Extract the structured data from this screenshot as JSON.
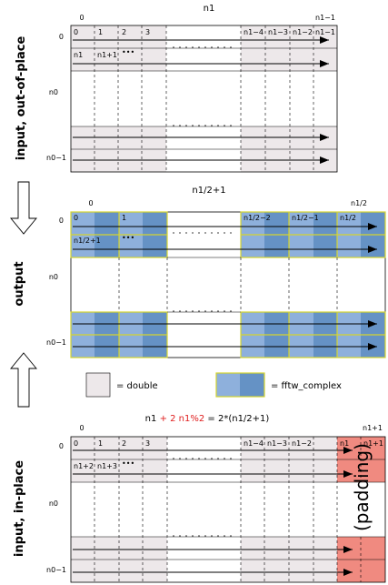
{
  "colors": {
    "double_fill": "#ede8ea",
    "complex_light": "#8eb0dc",
    "complex_dark": "#6592c5",
    "complex_border": "#d4d430",
    "padding_fill": "#f08a80",
    "grid_line": "#000000",
    "formula_accent": "#e02020"
  },
  "sections": {
    "input_oop": {
      "side_label": "input, out-of-place",
      "title": "n1",
      "col_start": "0",
      "col_end": "n1−1",
      "row_labels": {
        "first": "0",
        "middle": "n0",
        "last": "n0−1"
      },
      "row0_cells": [
        "0",
        "1",
        "2",
        "3",
        "n1−4",
        "n1−3",
        "n1−2",
        "n1−1"
      ],
      "row1_cells": [
        "n1",
        "n1+1",
        "•••"
      ]
    },
    "output": {
      "side_label": "output",
      "title": "n1/2+1",
      "col_start": "0",
      "col_end": "n1/2",
      "row_labels": {
        "first": "0",
        "middle": "n0",
        "last": "n0−1"
      },
      "row0_cells": [
        "0",
        "1",
        "n1/2−2",
        "n1/2−1",
        "n1/2"
      ],
      "row1_cells": [
        "n1/2+1",
        "•••"
      ]
    },
    "input_ip": {
      "side_label": "input, in-place",
      "title_prefix": "n1 ",
      "title_red": "+ 2  n1%2",
      "title_suffix": " = 2*(n1/2+1)",
      "col_start": "0",
      "col_end": "n1+1",
      "row_labels": {
        "first": "0",
        "middle": "n0",
        "last": "n0−1"
      },
      "row0_cells": [
        "0",
        "1",
        "2",
        "3",
        "n1−4",
        "n1−3",
        "n1−2",
        "n1",
        "n1+1"
      ],
      "row1_cells": [
        "n1+2",
        "n1+3",
        "•••"
      ],
      "padding_label": "(padding)"
    }
  },
  "legend": {
    "double_label": "= double",
    "complex_label": "= fftw_complex"
  },
  "icons": {
    "forward_arrow": "down-arrow-icon",
    "back_arrow": "up-arrow-icon"
  }
}
